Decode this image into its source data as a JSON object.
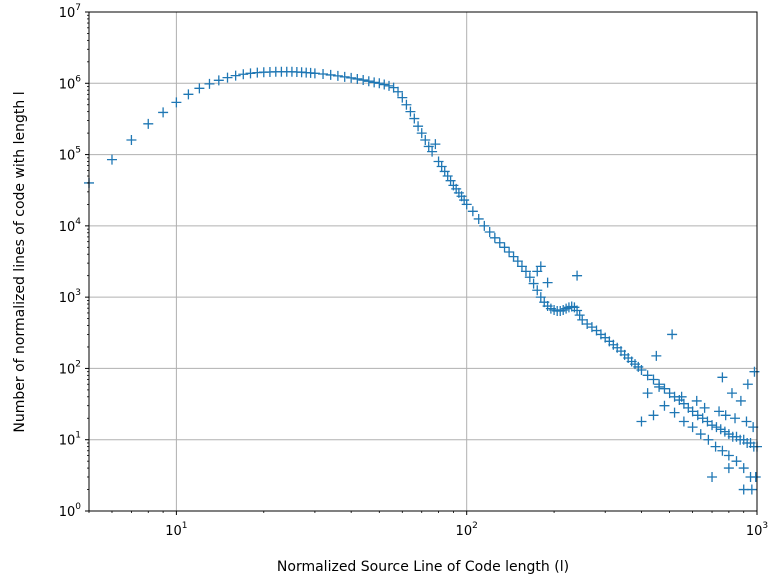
{
  "chart_data": {
    "type": "scatter",
    "xlabel": "Normalized Source Line of Code length (l)",
    "ylabel": "Number of normalized lines of code with length l",
    "xscale": "log",
    "yscale": "log",
    "xlim": [
      5,
      1000
    ],
    "ylim": [
      1,
      10000000
    ],
    "grid": true,
    "marker": "+",
    "series_color": "#1f77b4",
    "x_ticks": [
      {
        "value": 10,
        "base": "10",
        "exp": "1"
      },
      {
        "value": 100,
        "base": "10",
        "exp": "2"
      },
      {
        "value": 1000,
        "base": "10",
        "exp": "3"
      }
    ],
    "y_ticks": [
      {
        "value": 1,
        "base": "10",
        "exp": "0"
      },
      {
        "value": 10,
        "base": "10",
        "exp": "1"
      },
      {
        "value": 100,
        "base": "10",
        "exp": "2"
      },
      {
        "value": 1000,
        "base": "10",
        "exp": "3"
      },
      {
        "value": 10000,
        "base": "10",
        "exp": "4"
      },
      {
        "value": 100000,
        "base": "10",
        "exp": "5"
      },
      {
        "value": 1000000,
        "base": "10",
        "exp": "6"
      },
      {
        "value": 10000000,
        "base": "10",
        "exp": "7"
      }
    ],
    "points": [
      [
        5,
        40000
      ],
      [
        6,
        85000
      ],
      [
        7,
        160000
      ],
      [
        8,
        270000
      ],
      [
        9,
        390000
      ],
      [
        10,
        540000
      ],
      [
        11,
        700000
      ],
      [
        12,
        850000
      ],
      [
        13,
        980000
      ],
      [
        14,
        1100000
      ],
      [
        15,
        1200000
      ],
      [
        16,
        1280000
      ],
      [
        17,
        1340000
      ],
      [
        18,
        1380000
      ],
      [
        19,
        1410000
      ],
      [
        20,
        1430000
      ],
      [
        21,
        1440000
      ],
      [
        22,
        1450000
      ],
      [
        23,
        1450000
      ],
      [
        24,
        1450000
      ],
      [
        25,
        1450000
      ],
      [
        26,
        1440000
      ],
      [
        27,
        1430000
      ],
      [
        28,
        1410000
      ],
      [
        29,
        1400000
      ],
      [
        30,
        1380000
      ],
      [
        32,
        1350000
      ],
      [
        34,
        1310000
      ],
      [
        36,
        1270000
      ],
      [
        38,
        1230000
      ],
      [
        40,
        1190000
      ],
      [
        42,
        1150000
      ],
      [
        44,
        1110000
      ],
      [
        46,
        1070000
      ],
      [
        48,
        1030000
      ],
      [
        50,
        1000000
      ],
      [
        52,
        960000
      ],
      [
        54,
        920000
      ],
      [
        56,
        870000
      ],
      [
        58,
        760000
      ],
      [
        60,
        630000
      ],
      [
        62,
        500000
      ],
      [
        64,
        400000
      ],
      [
        66,
        320000
      ],
      [
        68,
        250000
      ],
      [
        70,
        200000
      ],
      [
        72,
        160000
      ],
      [
        74,
        130000
      ],
      [
        76,
        110000
      ],
      [
        78,
        140000
      ],
      [
        80,
        80000
      ],
      [
        82,
        68000
      ],
      [
        84,
        58000
      ],
      [
        86,
        50000
      ],
      [
        88,
        43000
      ],
      [
        90,
        37000
      ],
      [
        92,
        33000
      ],
      [
        94,
        29000
      ],
      [
        96,
        26000
      ],
      [
        98,
        23000
      ],
      [
        100,
        20000
      ],
      [
        105,
        16000
      ],
      [
        110,
        12500
      ],
      [
        115,
        10000
      ],
      [
        120,
        8200
      ],
      [
        125,
        6800
      ],
      [
        130,
        5800
      ],
      [
        135,
        5000
      ],
      [
        140,
        4300
      ],
      [
        145,
        3700
      ],
      [
        150,
        3200
      ],
      [
        155,
        2700
      ],
      [
        160,
        2300
      ],
      [
        165,
        1900
      ],
      [
        170,
        1550
      ],
      [
        175,
        1250
      ],
      [
        180,
        1000
      ],
      [
        185,
        850
      ],
      [
        190,
        750
      ],
      [
        195,
        690
      ],
      [
        200,
        660
      ],
      [
        205,
        640
      ],
      [
        210,
        640
      ],
      [
        215,
        660
      ],
      [
        220,
        690
      ],
      [
        225,
        720
      ],
      [
        230,
        740
      ],
      [
        235,
        720
      ],
      [
        240,
        650
      ],
      [
        245,
        560
      ],
      [
        250,
        480
      ],
      [
        260,
        420
      ],
      [
        270,
        380
      ],
      [
        280,
        340
      ],
      [
        290,
        300
      ],
      [
        300,
        270
      ],
      [
        310,
        240
      ],
      [
        320,
        215
      ],
      [
        330,
        195
      ],
      [
        340,
        175
      ],
      [
        350,
        155
      ],
      [
        360,
        140
      ],
      [
        370,
        125
      ],
      [
        380,
        115
      ],
      [
        390,
        105
      ],
      [
        400,
        95
      ],
      [
        420,
        80
      ],
      [
        440,
        70
      ],
      [
        460,
        60
      ],
      [
        480,
        52
      ],
      [
        500,
        45
      ],
      [
        520,
        40
      ],
      [
        540,
        36
      ],
      [
        560,
        32
      ],
      [
        580,
        28
      ],
      [
        600,
        25
      ],
      [
        625,
        22
      ],
      [
        650,
        20
      ],
      [
        675,
        18
      ],
      [
        700,
        16
      ],
      [
        725,
        15
      ],
      [
        750,
        14
      ],
      [
        775,
        13
      ],
      [
        800,
        12
      ],
      [
        825,
        11
      ],
      [
        850,
        11
      ],
      [
        875,
        10
      ],
      [
        900,
        10
      ],
      [
        925,
        9
      ],
      [
        950,
        9
      ],
      [
        975,
        8
      ],
      [
        1000,
        8
      ],
      [
        175,
        2300
      ],
      [
        180,
        2700
      ],
      [
        240,
        2000
      ],
      [
        190,
        1600
      ],
      [
        450,
        150
      ],
      [
        510,
        300
      ],
      [
        420,
        45
      ],
      [
        460,
        55
      ],
      [
        480,
        30
      ],
      [
        520,
        24
      ],
      [
        560,
        18
      ],
      [
        600,
        15
      ],
      [
        640,
        12
      ],
      [
        680,
        10
      ],
      [
        720,
        8
      ],
      [
        760,
        7
      ],
      [
        800,
        6
      ],
      [
        850,
        5
      ],
      [
        900,
        4
      ],
      [
        950,
        3
      ],
      [
        700,
        3
      ],
      [
        800,
        4
      ],
      [
        900,
        2
      ],
      [
        960,
        2
      ],
      [
        990,
        3
      ],
      [
        760,
        75
      ],
      [
        820,
        45
      ],
      [
        880,
        35
      ],
      [
        980,
        90
      ],
      [
        930,
        60
      ],
      [
        550,
        40
      ],
      [
        620,
        35
      ],
      [
        660,
        28
      ],
      [
        740,
        25
      ],
      [
        780,
        22
      ],
      [
        840,
        20
      ],
      [
        920,
        18
      ],
      [
        970,
        15
      ],
      [
        400,
        18
      ],
      [
        440,
        22
      ]
    ]
  }
}
